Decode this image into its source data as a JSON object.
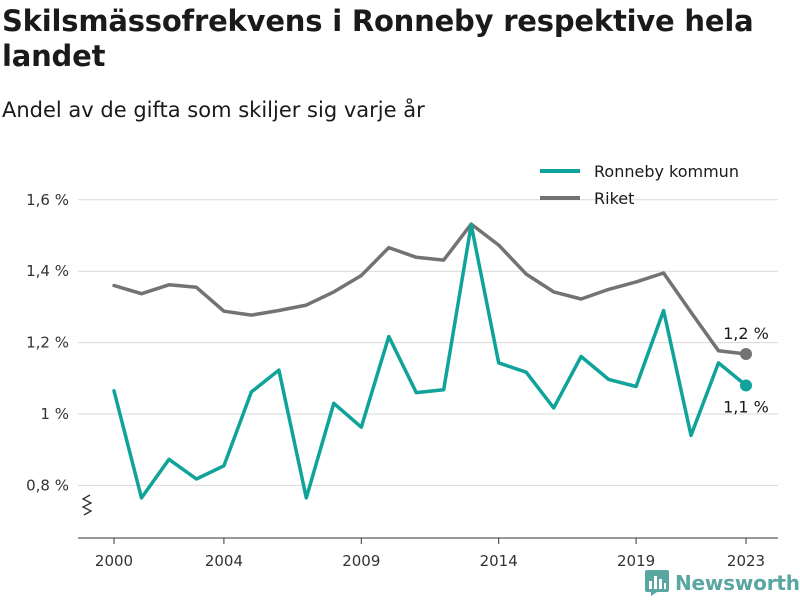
{
  "title": "Skilsmässofrekvens i Ronneby respektive hela landet",
  "subtitle": "Andel av de gifta som skiljer sig varje år",
  "brand": "Newsworthy",
  "chart_data": {
    "type": "line",
    "x": [
      2000,
      2001,
      2002,
      2003,
      2004,
      2005,
      2006,
      2007,
      2008,
      2009,
      2010,
      2011,
      2012,
      2013,
      2014,
      2015,
      2016,
      2017,
      2018,
      2019,
      2020,
      2021,
      2022,
      2023
    ],
    "x_ticks": [
      2000,
      2004,
      2009,
      2014,
      2019,
      2023
    ],
    "x_tick_labels": [
      "2000",
      "2004",
      "2009",
      "2014",
      "2019",
      "2023"
    ],
    "ylim": [
      0.65,
      1.66
    ],
    "y_ticks": [
      0.8,
      1.0,
      1.2,
      1.4,
      1.6
    ],
    "y_tick_labels": [
      "0,8 %",
      "1 %",
      "1,2 %",
      "1,4 %",
      "1,6 %"
    ],
    "grid": true,
    "legend_position": "top-right",
    "axis_break": true,
    "series": [
      {
        "name": "Ronneby kommun",
        "color": "#0fa39a",
        "values": [
          1.065,
          0.765,
          0.873,
          0.818,
          0.855,
          1.062,
          1.123,
          0.765,
          1.03,
          0.963,
          1.217,
          1.06,
          1.068,
          1.53,
          1.143,
          1.117,
          1.017,
          1.161,
          1.097,
          1.077,
          1.29,
          0.94,
          1.143,
          1.08
        ],
        "end_label": "1,1 %"
      },
      {
        "name": "Riket",
        "color": "#737373",
        "values": [
          1.36,
          1.337,
          1.362,
          1.355,
          1.288,
          1.277,
          1.29,
          1.305,
          1.342,
          1.388,
          1.466,
          1.439,
          1.431,
          1.532,
          1.473,
          1.392,
          1.342,
          1.322,
          1.349,
          1.37,
          1.395,
          1.285,
          1.177,
          1.168
        ],
        "end_label": "1,2 %"
      }
    ]
  }
}
